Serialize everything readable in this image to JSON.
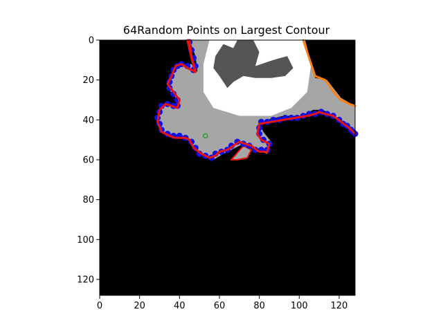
{
  "chart_data": {
    "type": "image-contour-overlay",
    "title": "64Random Points on Largest Contour",
    "xlabel": "",
    "ylabel": "",
    "xlim": [
      0,
      128
    ],
    "ylim": [
      128,
      0
    ],
    "x_ticks": [
      0,
      20,
      40,
      60,
      80,
      100,
      120
    ],
    "y_ticks": [
      0,
      20,
      40,
      60,
      80,
      100,
      120
    ],
    "grid": false,
    "colors": {
      "background": "#000000",
      "tissue": "#a6a6a6",
      "bright_region": "#ffffff",
      "dark_region": "#555555",
      "contour": "#e8130f",
      "sample_points": "#1010e6",
      "outer_edge": "#ff7f0e",
      "centroid": "#2ca02c"
    },
    "tissue_polygon": [
      [
        45,
        0
      ],
      [
        48,
        8
      ],
      [
        49,
        16
      ],
      [
        46,
        12
      ],
      [
        41,
        12
      ],
      [
        37,
        16
      ],
      [
        34,
        24
      ],
      [
        39,
        30
      ],
      [
        38,
        34
      ],
      [
        33,
        32
      ],
      [
        30,
        36
      ],
      [
        29,
        42
      ],
      [
        32,
        46
      ],
      [
        37,
        48
      ],
      [
        44,
        48
      ],
      [
        47,
        54
      ],
      [
        52,
        58
      ],
      [
        57,
        60
      ],
      [
        62,
        57
      ],
      [
        68,
        54
      ],
      [
        72,
        52
      ],
      [
        78,
        55
      ],
      [
        84,
        57
      ],
      [
        86,
        51
      ],
      [
        82,
        46
      ],
      [
        80,
        42
      ],
      [
        84,
        40
      ],
      [
        92,
        38
      ],
      [
        101,
        38
      ],
      [
        107,
        35
      ],
      [
        112,
        35
      ],
      [
        118,
        39
      ],
      [
        124,
        44
      ],
      [
        128,
        47
      ],
      [
        128,
        33
      ],
      [
        121,
        29
      ],
      [
        114,
        20
      ],
      [
        108,
        19
      ],
      [
        103,
        0
      ]
    ],
    "bright_polygon": [
      [
        55,
        0
      ],
      [
        102,
        0
      ],
      [
        106,
        12
      ],
      [
        104,
        26
      ],
      [
        96,
        34
      ],
      [
        86,
        38
      ],
      [
        70,
        38
      ],
      [
        57,
        34
      ],
      [
        52,
        26
      ],
      [
        52,
        12
      ]
    ],
    "dark_polygon": [
      [
        58,
        8
      ],
      [
        62,
        2
      ],
      [
        67,
        4
      ],
      [
        69,
        0
      ],
      [
        77,
        0
      ],
      [
        80,
        6
      ],
      [
        78,
        13
      ],
      [
        87,
        10
      ],
      [
        94,
        8
      ],
      [
        97,
        14
      ],
      [
        93,
        18
      ],
      [
        86,
        19
      ],
      [
        78,
        19
      ],
      [
        72,
        18
      ],
      [
        67,
        21
      ],
      [
        64,
        24
      ],
      [
        60,
        18
      ],
      [
        57,
        14
      ]
    ],
    "small_patch_polygon": [
      [
        66,
        60
      ],
      [
        72,
        53
      ],
      [
        76,
        55
      ],
      [
        74,
        59
      ],
      [
        69,
        60
      ]
    ],
    "contour": [
      [
        45,
        0
      ],
      [
        46,
        8
      ],
      [
        48,
        16
      ],
      [
        44,
        14
      ],
      [
        41,
        12
      ],
      [
        38,
        13
      ],
      [
        36,
        18
      ],
      [
        34,
        22
      ],
      [
        37,
        26
      ],
      [
        40,
        30
      ],
      [
        39,
        34
      ],
      [
        36,
        33
      ],
      [
        33,
        32
      ],
      [
        30,
        35
      ],
      [
        29,
        41
      ],
      [
        31,
        46
      ],
      [
        35,
        48
      ],
      [
        38,
        49
      ],
      [
        43,
        49
      ],
      [
        45,
        50
      ],
      [
        47,
        54
      ],
      [
        51,
        57
      ],
      [
        55,
        59
      ],
      [
        58,
        58
      ],
      [
        60,
        56
      ],
      [
        64,
        55
      ],
      [
        67,
        53
      ],
      [
        70,
        51
      ],
      [
        73,
        52
      ],
      [
        76,
        53
      ],
      [
        80,
        56
      ],
      [
        84,
        56
      ],
      [
        85,
        52
      ],
      [
        81,
        50
      ],
      [
        79,
        47
      ],
      [
        80,
        42
      ],
      [
        86,
        41
      ],
      [
        92,
        40
      ],
      [
        98,
        39
      ],
      [
        104,
        38
      ],
      [
        108,
        37
      ],
      [
        110,
        36
      ],
      [
        113,
        37
      ],
      [
        117,
        38
      ],
      [
        121,
        41
      ],
      [
        125,
        44
      ],
      [
        128,
        47
      ]
    ],
    "sample_points": [
      [
        45,
        1
      ],
      [
        46,
        5
      ],
      [
        47,
        9
      ],
      [
        48,
        13
      ],
      [
        47,
        15
      ],
      [
        44,
        13
      ],
      [
        41,
        12
      ],
      [
        39,
        13
      ],
      [
        37,
        15
      ],
      [
        36,
        18
      ],
      [
        35,
        21
      ],
      [
        35,
        24
      ],
      [
        37,
        27
      ],
      [
        39,
        30
      ],
      [
        39,
        33
      ],
      [
        37,
        33
      ],
      [
        34,
        32
      ],
      [
        31,
        33
      ],
      [
        30,
        36
      ],
      [
        29,
        39
      ],
      [
        30,
        42
      ],
      [
        31,
        45
      ],
      [
        34,
        47
      ],
      [
        37,
        48
      ],
      [
        40,
        48
      ],
      [
        43,
        49
      ],
      [
        46,
        51
      ],
      [
        48,
        54
      ],
      [
        50,
        57
      ],
      [
        53,
        58
      ],
      [
        56,
        59
      ],
      [
        58,
        57
      ],
      [
        61,
        56
      ],
      [
        64,
        55
      ],
      [
        66,
        53
      ],
      [
        69,
        51
      ],
      [
        72,
        52
      ],
      [
        75,
        53
      ],
      [
        78,
        55
      ],
      [
        81,
        55
      ],
      [
        84,
        55
      ],
      [
        85,
        52
      ],
      [
        82,
        50
      ],
      [
        80,
        47
      ],
      [
        80,
        44
      ],
      [
        81,
        41
      ],
      [
        84,
        41
      ],
      [
        87,
        40
      ],
      [
        90,
        40
      ],
      [
        93,
        39
      ],
      [
        96,
        39
      ],
      [
        99,
        39
      ],
      [
        102,
        38
      ],
      [
        105,
        37
      ],
      [
        108,
        37
      ],
      [
        111,
        36
      ],
      [
        114,
        37
      ],
      [
        117,
        38
      ],
      [
        120,
        40
      ],
      [
        122,
        42
      ],
      [
        124,
        43
      ],
      [
        126,
        45
      ],
      [
        127,
        46
      ],
      [
        128,
        47
      ]
    ],
    "outer_edge": [
      [
        102,
        0
      ],
      [
        104,
        6
      ],
      [
        106,
        12
      ],
      [
        108,
        18
      ],
      [
        113,
        20
      ],
      [
        116,
        24
      ],
      [
        118,
        27
      ],
      [
        121,
        30
      ],
      [
        125,
        32
      ],
      [
        128,
        33
      ]
    ],
    "left_edge": [
      [
        44,
        0
      ],
      [
        46,
        9
      ],
      [
        48,
        16
      ]
    ],
    "centroid": [
      53,
      48
    ]
  }
}
